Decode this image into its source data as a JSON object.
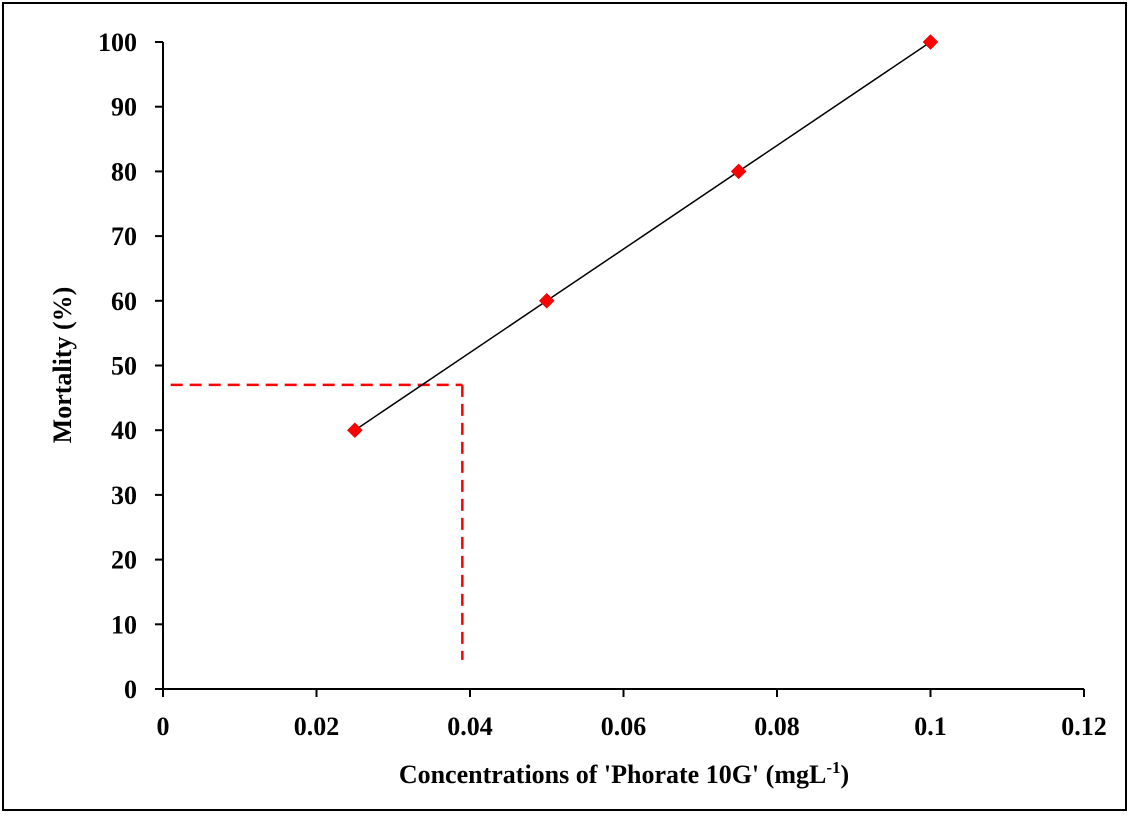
{
  "chart_data": {
    "type": "scatter",
    "title": "",
    "xlabel": "Concentrations of 'Phorate 10G' (mgL",
    "xlabel_sup": "-1",
    "xlabel_close": ")",
    "ylabel": "Mortality (%)",
    "xlim": [
      0,
      0.12
    ],
    "ylim": [
      0,
      100
    ],
    "x_ticks": [
      0,
      0.02,
      0.04,
      0.06,
      0.08,
      0.1,
      0.12
    ],
    "x_tick_labels": [
      "0",
      "0.02",
      "0.04",
      "0.06",
      "0.08",
      "0.1",
      "0.12"
    ],
    "y_ticks": [
      0,
      10,
      20,
      30,
      40,
      50,
      60,
      70,
      80,
      90,
      100
    ],
    "y_tick_labels": [
      "0",
      "10",
      "20",
      "30",
      "40",
      "50",
      "60",
      "70",
      "80",
      "90",
      "100"
    ],
    "grid": false,
    "legend": "none",
    "series": [
      {
        "x": [
          0.025,
          0.05,
          0.075,
          0.1
        ],
        "y": [
          40,
          60,
          80,
          100
        ],
        "marker": "diamond",
        "marker_color": "#ff0000",
        "line_color": "#000000"
      }
    ],
    "reference_lines": {
      "color": "#ff0000",
      "style": "dashed",
      "horizontal_y": 47,
      "horizontal_x_range": [
        0.001,
        0.039
      ],
      "vertical_x": 0.039,
      "vertical_y_range": [
        4.5,
        47
      ]
    }
  }
}
